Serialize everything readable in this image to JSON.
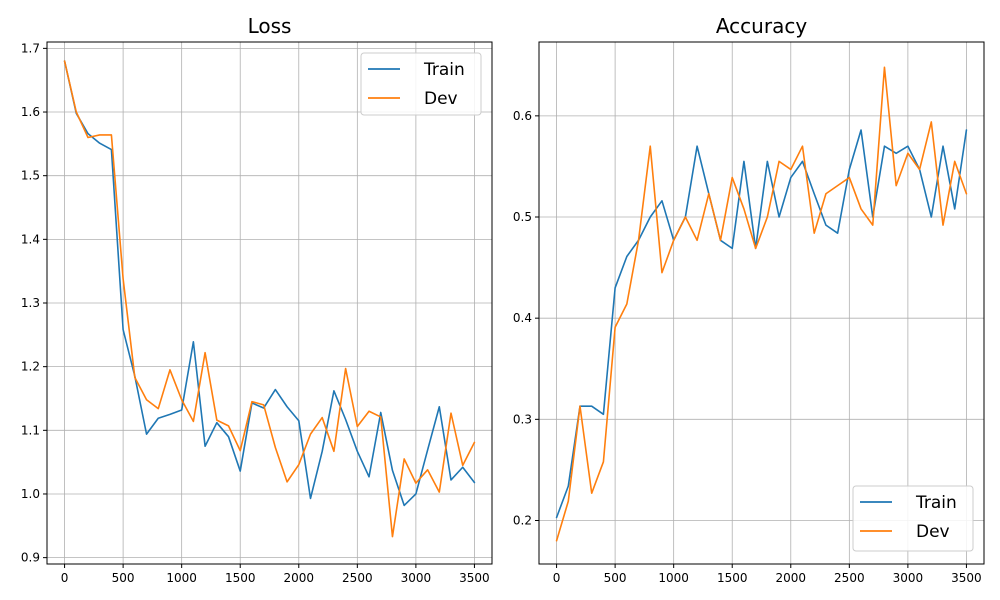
{
  "colors": {
    "train": "#1f77b4",
    "dev": "#ff7f0e",
    "grid": "#b0b0b0"
  },
  "chart_data": [
    {
      "type": "line",
      "title": "Loss",
      "xlabel": "",
      "ylabel": "",
      "xlim": [
        -150,
        3650
      ],
      "ylim": [
        0.89,
        1.71
      ],
      "xticks": [
        0,
        500,
        1000,
        1500,
        2000,
        2500,
        3000,
        3500
      ],
      "yticks": [
        0.9,
        1.0,
        1.1,
        1.2,
        1.3,
        1.4,
        1.5,
        1.6,
        1.7
      ],
      "ytick_labels": [
        "0.9",
        "1.0",
        "1.1",
        "1.2",
        "1.3",
        "1.4",
        "1.5",
        "1.6",
        "1.7"
      ],
      "grid": true,
      "legend_position": "top-right",
      "x": [
        0,
        100,
        200,
        300,
        400,
        500,
        600,
        700,
        800,
        900,
        1000,
        1100,
        1200,
        1300,
        1400,
        1500,
        1600,
        1700,
        1800,
        1900,
        2000,
        2100,
        2200,
        2300,
        2400,
        2500,
        2600,
        2700,
        2800,
        2900,
        3000,
        3100,
        3200,
        3300,
        3400,
        3500
      ],
      "series": [
        {
          "name": "Train",
          "color_key": "train",
          "values": [
            1.68,
            1.598,
            1.566,
            1.551,
            1.541,
            1.258,
            1.185,
            1.094,
            1.119,
            1.125,
            1.132,
            1.239,
            1.075,
            1.112,
            1.09,
            1.036,
            1.143,
            1.135,
            1.164,
            1.137,
            1.115,
            0.993,
            1.067,
            1.162,
            1.117,
            1.067,
            1.027,
            1.128,
            1.037,
            0.982,
            1.0,
            1.069,
            1.137,
            1.022,
            1.042,
            1.018
          ]
        },
        {
          "name": "Dev",
          "color_key": "dev",
          "values": [
            1.68,
            1.6,
            1.56,
            1.564,
            1.564,
            1.338,
            1.183,
            1.148,
            1.134,
            1.195,
            1.148,
            1.114,
            1.222,
            1.116,
            1.107,
            1.068,
            1.145,
            1.14,
            1.073,
            1.019,
            1.046,
            1.094,
            1.12,
            1.067,
            1.197,
            1.106,
            1.13,
            1.121,
            0.933,
            1.055,
            1.017,
            1.038,
            1.003,
            1.127,
            1.045,
            1.081
          ]
        }
      ]
    },
    {
      "type": "line",
      "title": "Accuracy",
      "xlabel": "",
      "ylabel": "",
      "xlim": [
        -150,
        3650
      ],
      "ylim": [
        0.157,
        0.673
      ],
      "xticks": [
        0,
        500,
        1000,
        1500,
        2000,
        2500,
        3000,
        3500
      ],
      "yticks": [
        0.2,
        0.3,
        0.4,
        0.5,
        0.6
      ],
      "ytick_labels": [
        "0.2",
        "0.3",
        "0.4",
        "0.5",
        "0.6"
      ],
      "grid": true,
      "legend_position": "bottom-right",
      "x": [
        0,
        100,
        200,
        300,
        400,
        500,
        600,
        700,
        800,
        900,
        1000,
        1100,
        1200,
        1300,
        1400,
        1500,
        1600,
        1700,
        1800,
        1900,
        2000,
        2100,
        2200,
        2300,
        2400,
        2500,
        2600,
        2700,
        2800,
        2900,
        3000,
        3100,
        3200,
        3300,
        3400,
        3500
      ],
      "series": [
        {
          "name": "Train",
          "color_key": "train",
          "values": [
            0.203,
            0.234,
            0.313,
            0.313,
            0.305,
            0.43,
            0.461,
            0.477,
            0.5,
            0.516,
            0.477,
            0.5,
            0.57,
            0.523,
            0.477,
            0.469,
            0.555,
            0.469,
            0.555,
            0.5,
            0.539,
            0.555,
            0.523,
            0.492,
            0.484,
            0.547,
            0.586,
            0.5,
            0.57,
            0.563,
            0.57,
            0.547,
            0.5,
            0.57,
            0.508,
            0.586
          ]
        },
        {
          "name": "Dev",
          "color_key": "dev",
          "values": [
            0.18,
            0.219,
            0.313,
            0.227,
            0.258,
            0.391,
            0.414,
            0.477,
            0.57,
            0.445,
            0.477,
            0.5,
            0.477,
            0.523,
            0.477,
            0.539,
            0.508,
            0.469,
            0.5,
            0.555,
            0.547,
            0.57,
            0.484,
            0.523,
            0.531,
            0.539,
            0.508,
            0.492,
            0.648,
            0.531,
            0.563,
            0.547,
            0.594,
            0.492,
            0.555,
            0.523
          ]
        }
      ]
    }
  ]
}
